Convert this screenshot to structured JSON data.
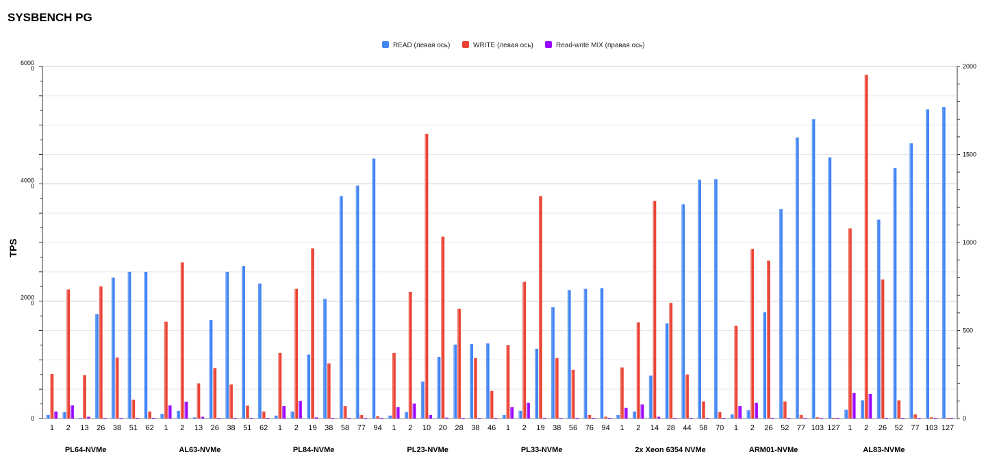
{
  "chart_data": {
    "type": "bar",
    "title": "SYSBENCH PG",
    "ylabel": "TPS",
    "ylim_left": [
      0,
      6000
    ],
    "ylim_right": [
      0,
      2000
    ],
    "yticks_left": [
      "6000\n0",
      "4000\n0",
      "2000\n0",
      "0"
    ],
    "yticks_right": [
      "2000",
      "1500",
      "1000",
      "500",
      "0"
    ],
    "legend_position": "top-center",
    "grid": true,
    "colors": {
      "read": "#4285f4",
      "write": "#ea4335",
      "mix": "#9900ff"
    },
    "series": [
      {
        "key": "read",
        "name": "READ (левая ось)",
        "axis": "left"
      },
      {
        "key": "write",
        "name": "WRITE (левая ось)",
        "axis": "left"
      },
      {
        "key": "mix",
        "name": "Read-write MIX (правая ось)",
        "axis": "right"
      }
    ],
    "groups": [
      {
        "name": "PL64-NVMe",
        "threads": [
          "1",
          "2",
          "13",
          "26",
          "38",
          "51",
          "62"
        ],
        "read": [
          60,
          110,
          10,
          1780,
          2400,
          2500,
          2500
        ],
        "write": [
          760,
          2200,
          740,
          2250,
          1040,
          320,
          120
        ],
        "mix": [
          40,
          75,
          10,
          2,
          0,
          0,
          0
        ]
      },
      {
        "name": "AL63-NVMe",
        "threads": [
          "1",
          "2",
          "13",
          "26",
          "38",
          "51",
          "62"
        ],
        "read": [
          80,
          130,
          20,
          1680,
          2500,
          2600,
          2300
        ],
        "write": [
          1650,
          2660,
          600,
          860,
          580,
          220,
          120
        ],
        "mix": [
          75,
          95,
          10,
          2,
          0,
          0,
          0
        ]
      },
      {
        "name": "PL84-NVMe",
        "threads": [
          "1",
          "2",
          "19",
          "38",
          "58",
          "77",
          "94"
        ],
        "read": [
          50,
          120,
          1090,
          2040,
          3790,
          3970,
          4430
        ],
        "write": [
          1120,
          2210,
          2900,
          940,
          210,
          60,
          40
        ],
        "mix": [
          70,
          100,
          6,
          0,
          0,
          0,
          0
        ]
      },
      {
        "name": "PL23-NVMe",
        "threads": [
          "1",
          "2",
          "10",
          "20",
          "28",
          "38",
          "46"
        ],
        "read": [
          50,
          110,
          630,
          1050,
          1260,
          1270,
          1280
        ],
        "write": [
          1120,
          2160,
          4850,
          3100,
          1870,
          1030,
          470
        ],
        "mix": [
          65,
          85,
          20,
          5,
          0,
          0,
          0
        ]
      },
      {
        "name": "PL33-NVMe",
        "threads": [
          "1",
          "2",
          "19",
          "38",
          "56",
          "76",
          "94"
        ],
        "read": [
          60,
          130,
          1190,
          1900,
          2190,
          2210,
          2220
        ],
        "write": [
          1250,
          2330,
          3790,
          1030,
          830,
          60,
          30
        ],
        "mix": [
          65,
          90,
          4,
          0,
          0,
          0,
          0
        ]
      },
      {
        "name": "2x Xeon 6354 NVMe",
        "threads": [
          "1",
          "2",
          "14",
          "28",
          "44",
          "58",
          "70"
        ],
        "read": [
          60,
          120,
          730,
          1620,
          3650,
          4070,
          4080
        ],
        "write": [
          870,
          1640,
          3710,
          1970,
          750,
          290,
          110
        ],
        "mix": [
          60,
          80,
          10,
          3,
          0,
          0,
          0
        ]
      },
      {
        "name": "ARM01-NVMe",
        "threads": [
          "1",
          "2",
          "26",
          "52",
          "77",
          "103",
          "127"
        ],
        "read": [
          70,
          140,
          1810,
          3570,
          4790,
          5100,
          4450
        ],
        "write": [
          1580,
          2890,
          2690,
          290,
          60,
          20,
          10
        ],
        "mix": [
          70,
          90,
          4,
          0,
          0,
          0,
          0
        ]
      },
      {
        "name": "AL83-NVMe",
        "threads": [
          "1",
          "2",
          "26",
          "52",
          "77",
          "103",
          "127"
        ],
        "read": [
          150,
          310,
          3390,
          4270,
          4690,
          5270,
          5310
        ],
        "write": [
          3240,
          5860,
          2370,
          310,
          70,
          20,
          10
        ],
        "mix": [
          145,
          140,
          4,
          0,
          0,
          0,
          0
        ]
      }
    ]
  }
}
